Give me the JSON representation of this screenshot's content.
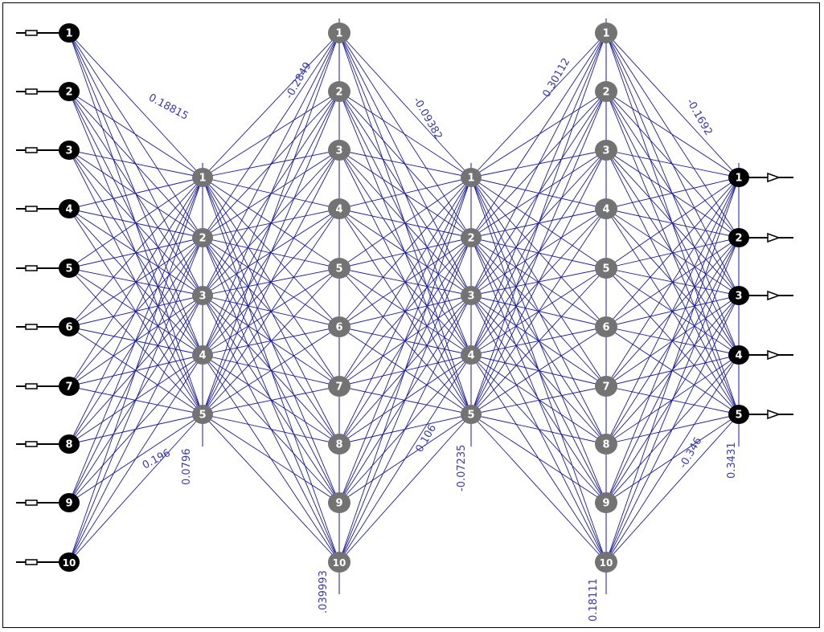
{
  "network": {
    "layers": [
      {
        "id": "input",
        "node_labels": [
          "1",
          "2",
          "3",
          "4",
          "5",
          "6",
          "7",
          "8",
          "9",
          "10"
        ],
        "color": "#000000"
      },
      {
        "id": "hidden1",
        "node_labels": [
          "1",
          "2",
          "3",
          "4",
          "5"
        ],
        "color": "#737373"
      },
      {
        "id": "hidden2",
        "node_labels": [
          "1",
          "2",
          "3",
          "4",
          "5",
          "6",
          "7",
          "8",
          "9",
          "10"
        ],
        "color": "#737373"
      },
      {
        "id": "hidden3",
        "node_labels": [
          "1",
          "2",
          "3",
          "4",
          "5"
        ],
        "color": "#737373"
      },
      {
        "id": "hidden4",
        "node_labels": [
          "1",
          "2",
          "3",
          "4",
          "5",
          "6",
          "7",
          "8",
          "9",
          "10"
        ],
        "color": "#737373"
      },
      {
        "id": "output",
        "node_labels": [
          "1",
          "2",
          "3",
          "4",
          "5"
        ],
        "color": "#000000"
      }
    ],
    "edge_color": "#1a1aa0",
    "weight_labels": [
      {
        "layer": 1,
        "text": "0.18815"
      },
      {
        "layer": 1,
        "text": "0.196"
      },
      {
        "layer": 1,
        "text": "0.0796"
      },
      {
        "layer": 2,
        "text": "-0.2849"
      },
      {
        "layer": 2,
        "text": ".039993"
      },
      {
        "layer": 3,
        "text": "-0.09382"
      },
      {
        "layer": 3,
        "text": "0.106"
      },
      {
        "layer": 3,
        "text": "-0.07235"
      },
      {
        "layer": 4,
        "text": "0.30112"
      },
      {
        "layer": 4,
        "text": "0.18111"
      },
      {
        "layer": 5,
        "text": "-0.1692"
      },
      {
        "layer": 5,
        "text": "-0.346"
      },
      {
        "layer": 5,
        "text": "0.3431"
      }
    ]
  }
}
